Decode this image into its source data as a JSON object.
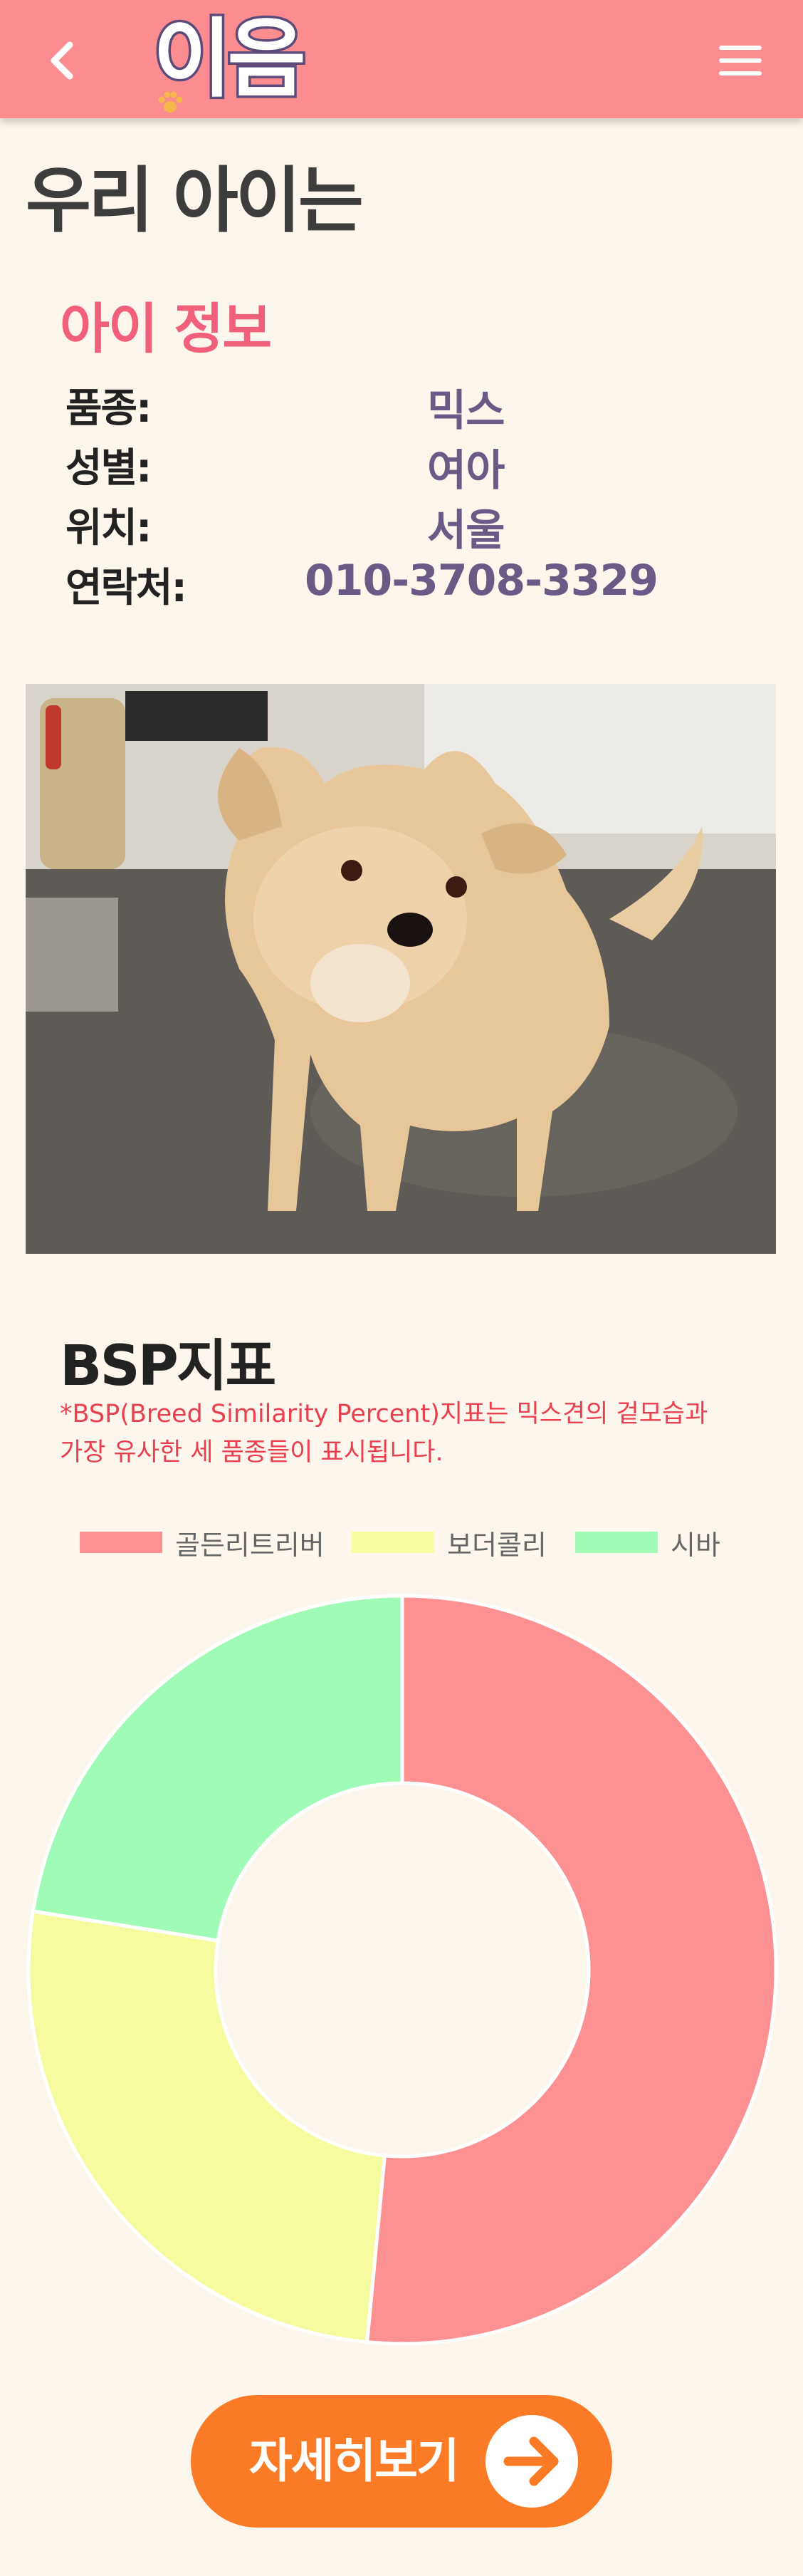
{
  "header": {
    "logo_text": "이음",
    "back_icon": "chevron-left-icon",
    "menu_icon": "hamburger-menu-icon",
    "background": "#fb8c8f"
  },
  "page_title": "우리 아이는",
  "info": {
    "title": "아이 정보",
    "rows": [
      {
        "label": "품종:",
        "value": "믹스"
      },
      {
        "label": "성별:",
        "value": "여아"
      },
      {
        "label": "위치:",
        "value": "서울"
      },
      {
        "label": "연락처:",
        "value": "010-3708-3329"
      }
    ]
  },
  "bsp": {
    "title": "BSP지표",
    "note_line1": "*BSP(Breed Similarity Percent)지표는 믹스견의 겉모습과",
    "note_line2": "가장 유사한 세 품종들이 표시됩니다."
  },
  "chart_data": {
    "type": "pie",
    "categories": [
      "골든리트리버",
      "보더콜리",
      "시바"
    ],
    "values": [
      51.5,
      26.0,
      22.5
    ],
    "colors": [
      "#fd9191",
      "#f7fb9f",
      "#9ffbb5"
    ],
    "legend": "top",
    "donut": true
  },
  "detail_button": {
    "label": "자세히보기",
    "icon": "arrow-right-icon",
    "color": "#fa7a25"
  }
}
